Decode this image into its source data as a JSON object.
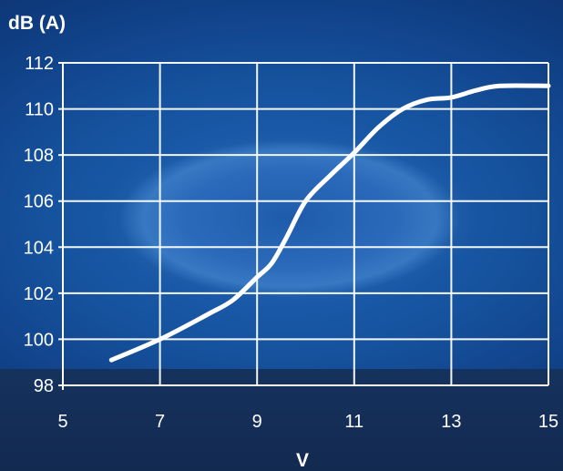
{
  "chart_data": {
    "type": "line",
    "title": "",
    "xlabel": "V",
    "ylabel": "dB (A)",
    "xlim": [
      5,
      15
    ],
    "ylim": [
      98,
      112
    ],
    "x_ticks": [
      5,
      7,
      9,
      11,
      13,
      15
    ],
    "y_ticks": [
      98,
      100,
      102,
      104,
      106,
      108,
      110,
      112
    ],
    "x_grid_values": [
      5,
      7,
      9,
      11,
      13,
      15
    ],
    "y_grid_values": [
      98,
      100,
      102,
      104,
      106,
      108,
      110,
      112
    ],
    "grid": true,
    "series": [
      {
        "name": "",
        "color": "#ffffff",
        "points": [
          [
            6.0,
            99.1
          ],
          [
            7.0,
            100.0
          ],
          [
            8.0,
            101.1
          ],
          [
            8.5,
            101.7
          ],
          [
            9.0,
            102.7
          ],
          [
            9.3,
            103.3
          ],
          [
            9.6,
            104.4
          ],
          [
            10.0,
            106.0
          ],
          [
            10.5,
            107.1
          ],
          [
            11.0,
            108.1
          ],
          [
            11.5,
            109.2
          ],
          [
            12.0,
            110.0
          ],
          [
            12.5,
            110.4
          ],
          [
            13.0,
            110.5
          ],
          [
            13.5,
            110.8
          ],
          [
            14.0,
            111.0
          ],
          [
            15.0,
            111.0
          ]
        ]
      }
    ]
  }
}
